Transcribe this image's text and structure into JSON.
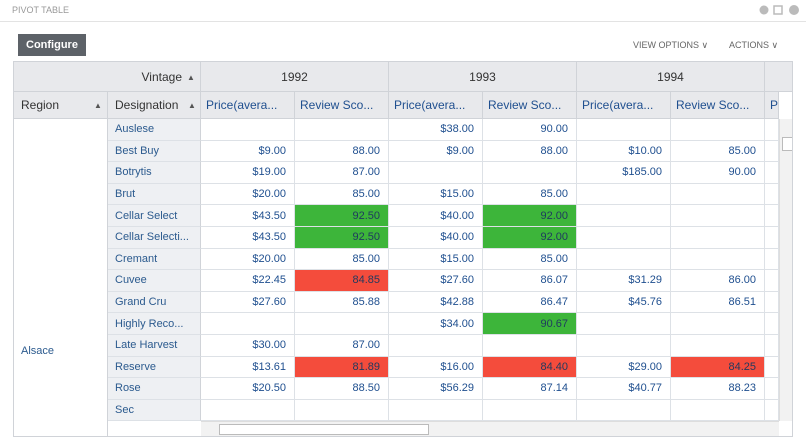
{
  "header": {
    "title": "PIVOT TABLE",
    "button": "Configure",
    "menus": [
      "VIEW OPTIONS",
      "ACTIONS"
    ]
  },
  "table": {
    "column_field": "Vintage",
    "row_fields": [
      "Region",
      "Designation"
    ],
    "years": [
      "1992",
      "1993",
      "1994"
    ],
    "measures": [
      "Price(avera...",
      "Review Sco...",
      "Price(avera...",
      "Review Sco...",
      "Price(avera...",
      "Review Sco...",
      "Price(avera..."
    ],
    "region": "Alsace",
    "rows": [
      {
        "designation": "Auslese",
        "cells": [
          null,
          null,
          "$38.00",
          "90.00",
          null,
          null
        ]
      },
      {
        "designation": "Best Buy",
        "cells": [
          "$9.00",
          "88.00",
          "$9.00",
          "88.00",
          "$10.00",
          "85.00"
        ]
      },
      {
        "designation": "Botrytis",
        "cells": [
          "$19.00",
          "87.00",
          null,
          null,
          "$185.00",
          "90.00"
        ]
      },
      {
        "designation": "Brut",
        "cells": [
          "$20.00",
          "85.00",
          "$15.00",
          "85.00",
          null,
          null
        ]
      },
      {
        "designation": "Cellar Select",
        "cells": [
          "$43.50",
          "92.50",
          "$40.00",
          "92.00",
          null,
          null
        ]
      },
      {
        "designation": "Cellar Selecti...",
        "cells": [
          "$43.50",
          "92.50",
          "$40.00",
          "92.00",
          null,
          null
        ]
      },
      {
        "designation": "Cremant",
        "cells": [
          "$20.00",
          "85.00",
          "$15.00",
          "85.00",
          null,
          null
        ]
      },
      {
        "designation": "Cuvee",
        "cells": [
          "$22.45",
          "84.85",
          "$27.60",
          "86.07",
          "$31.29",
          "86.00"
        ]
      },
      {
        "designation": "Grand Cru",
        "cells": [
          "$27.60",
          "85.88",
          "$42.88",
          "86.47",
          "$45.76",
          "86.51"
        ]
      },
      {
        "designation": "Highly Reco...",
        "cells": [
          null,
          null,
          "$34.00",
          "90.67",
          null,
          null
        ]
      },
      {
        "designation": "Late Harvest",
        "cells": [
          "$30.00",
          "87.00",
          null,
          null,
          null,
          null
        ]
      },
      {
        "designation": "Reserve",
        "cells": [
          "$13.61",
          "81.89",
          "$16.00",
          "84.40",
          "$29.00",
          "84.25"
        ]
      },
      {
        "designation": "Rose",
        "cells": [
          "$20.50",
          "88.50",
          "$56.29",
          "87.14",
          "$40.77",
          "88.23"
        ]
      },
      {
        "designation": "Sec",
        "cells": [
          null,
          null,
          null,
          null,
          null,
          null
        ]
      }
    ],
    "highlights": [
      {
        "row": 4,
        "col": 1,
        "color": "#3db53a"
      },
      {
        "row": 4,
        "col": 3,
        "color": "#3db53a"
      },
      {
        "row": 5,
        "col": 1,
        "color": "#3db53a"
      },
      {
        "row": 5,
        "col": 3,
        "color": "#3db53a"
      },
      {
        "row": 7,
        "col": 1,
        "color": "#f44c3c"
      },
      {
        "row": 9,
        "col": 3,
        "color": "#3db53a"
      },
      {
        "row": 11,
        "col": 1,
        "color": "#f44c3c"
      },
      {
        "row": 11,
        "col": 3,
        "color": "#f44c3c"
      },
      {
        "row": 11,
        "col": 5,
        "color": "#f44c3c"
      }
    ]
  }
}
